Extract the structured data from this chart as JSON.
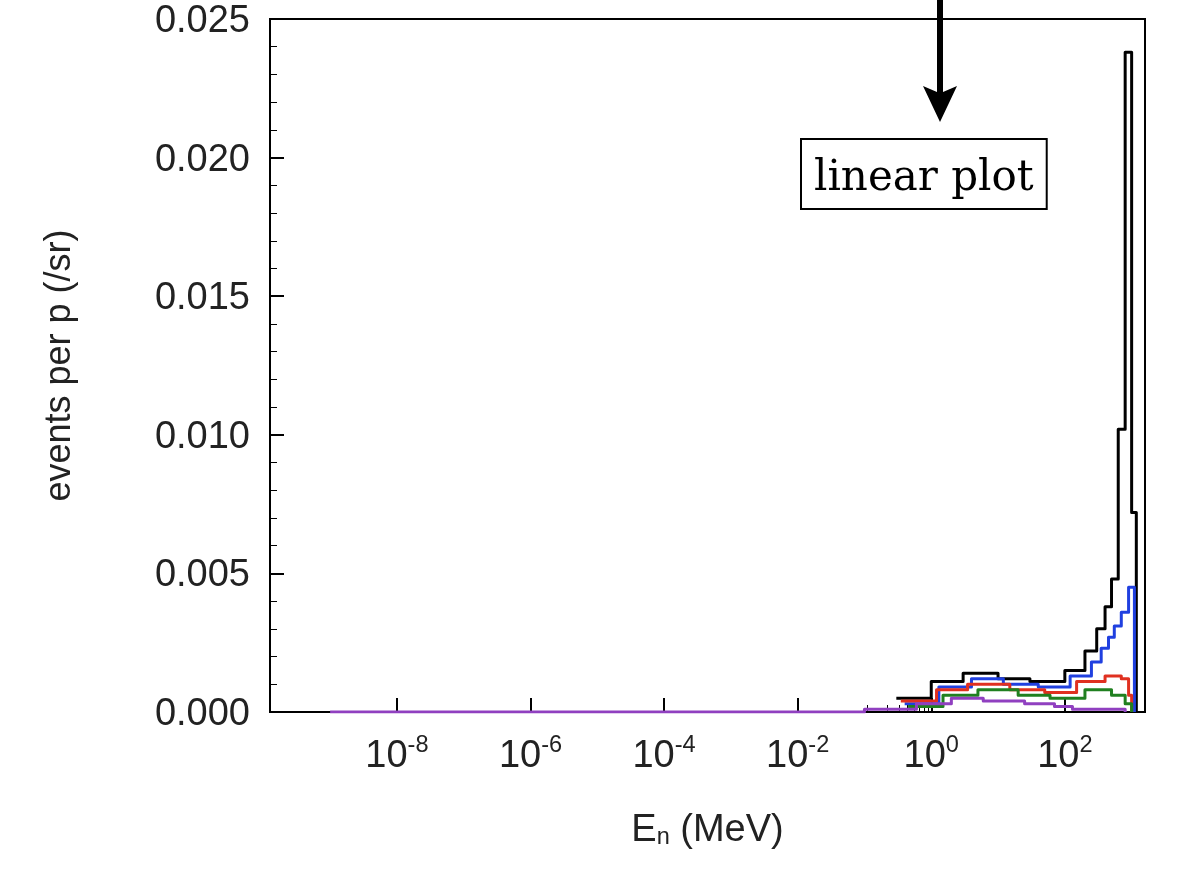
{
  "chart_data": {
    "type": "step",
    "xlabel": "E$_{n}$ (MeV)",
    "ylabel": "events per p (/sr)",
    "annotations": [
      "linear plot"
    ],
    "log": "x",
    "xlim": [
      1.26e-10,
      1585
    ],
    "xticks": [
      {
        "value": 1e-08,
        "label": "10$^{-8}$"
      },
      {
        "value": 1e-06,
        "label": "10$^{-6}$"
      },
      {
        "value": 0.0001,
        "label": "10$^{-4}$"
      },
      {
        "value": 0.01,
        "label": "10$^{-2}$"
      },
      {
        "value": 1,
        "label": "10$^{0}$"
      },
      {
        "value": 100,
        "label": "10$^{2}$"
      }
    ],
    "ylim": [
      0,
      0.025
    ],
    "yticks": [
      {
        "value": 0,
        "label": "0.000"
      },
      {
        "value": 0.005,
        "label": "0.005"
      },
      {
        "value": 0.01,
        "label": "0.010"
      },
      {
        "value": 0.015,
        "label": "0.015"
      },
      {
        "value": 0.02,
        "label": "0.020"
      },
      {
        "value": 0.025,
        "label": "0.025"
      }
    ],
    "grid": false,
    "marker": "none",
    "line_style": "solid",
    "series": [
      {
        "color": "#000000",
        "x": [
          0.3,
          1,
          3,
          10,
          30,
          100,
          200,
          300,
          400,
          500,
          630,
          800,
          1000,
          1175
        ],
        "values": [
          0.0005,
          0.0011,
          0.0014,
          0.0012,
          0.0011,
          0.0015,
          0.0022,
          0.003,
          0.0038,
          0.0048,
          0.0102,
          0.0238,
          0.0072,
          0
        ]
      },
      {
        "color": "#2040e0",
        "x": [
          0.4,
          1.3,
          4,
          12,
          40,
          120,
          250,
          350,
          450,
          550,
          700,
          900,
          1100
        ],
        "values": [
          0.0003,
          0.0009,
          0.0012,
          0.001,
          0.0009,
          0.0013,
          0.0018,
          0.0023,
          0.0027,
          0.0031,
          0.0036,
          0.0045,
          0
        ]
      },
      {
        "color": "#e03020",
        "x": [
          0.35,
          1.2,
          3.5,
          15,
          50,
          150,
          400,
          700,
          900,
          1000
        ],
        "values": [
          0.0004,
          0.0008,
          0.001,
          0.0008,
          0.0007,
          0.0011,
          0.0013,
          0.0012,
          0.0006,
          0
        ]
      },
      {
        "color": "#208020",
        "x": [
          0.45,
          1.5,
          5,
          20,
          60,
          200,
          500,
          800,
          1000
        ],
        "values": [
          0.0002,
          0.0006,
          0.0008,
          0.0006,
          0.0005,
          0.0008,
          0.0006,
          0.0003,
          0
        ]
      },
      {
        "color": "#9040c0",
        "x": [
          1e-09,
          0.01,
          0.1,
          0.6,
          2,
          6,
          25,
          70,
          130,
          400,
          800
        ],
        "values": [
          0,
          0,
          0.0001,
          0.0003,
          0.0005,
          0.0004,
          0.0003,
          0.0002,
          0.0001,
          0.0001,
          0
        ]
      }
    ]
  }
}
